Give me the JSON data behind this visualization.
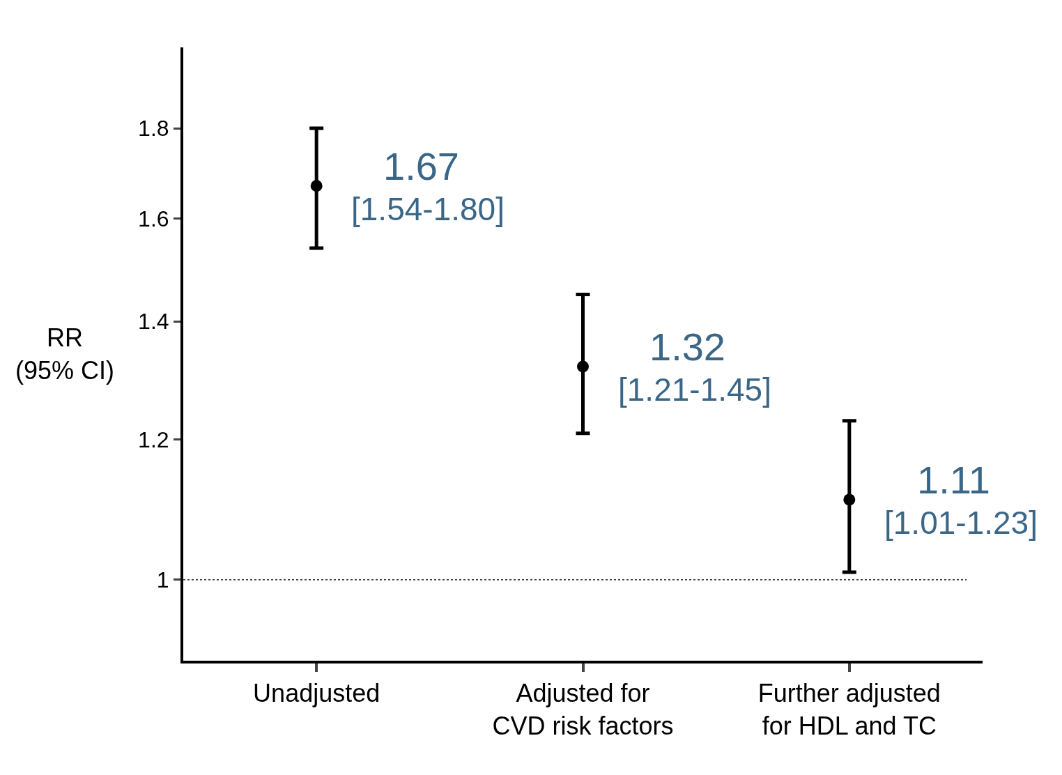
{
  "chart_data": {
    "type": "scatter",
    "ylabel": "RR\n(95% CI)",
    "categories": [
      "Unadjusted",
      "Adjusted for\nCVD risk factors",
      "Further adjusted\nfor HDL and TC"
    ],
    "values": [
      1.67,
      1.32,
      1.11
    ],
    "errors": [
      [
        1.54,
        1.8
      ],
      [
        1.21,
        1.45
      ],
      [
        1.01,
        1.23
      ]
    ],
    "value_labels": [
      "1.67",
      "1.32",
      "1.11"
    ],
    "annotations": [
      {
        "text": "[1.54-1.80]",
        "x": "Unadjusted",
        "y": 1.67
      },
      {
        "text": "[1.21-1.45]",
        "x": "Adjusted for\nCVD risk factors",
        "y": 1.32
      },
      {
        "text": "[1.01-1.23]",
        "x": "Further adjusted\nfor HDL and TC",
        "y": 1.11
      }
    ],
    "color": "#000000",
    "marker": "circle",
    "log": "y",
    "ylim": [
      0.9,
      2.0
    ],
    "yticks": [
      1,
      1.2,
      1.4,
      1.6,
      1.8
    ],
    "ref_lines": [
      {
        "axis": "y",
        "value": 1,
        "line_style": "dotted",
        "color": "#000000"
      }
    ],
    "grid": false,
    "legend": false
  }
}
